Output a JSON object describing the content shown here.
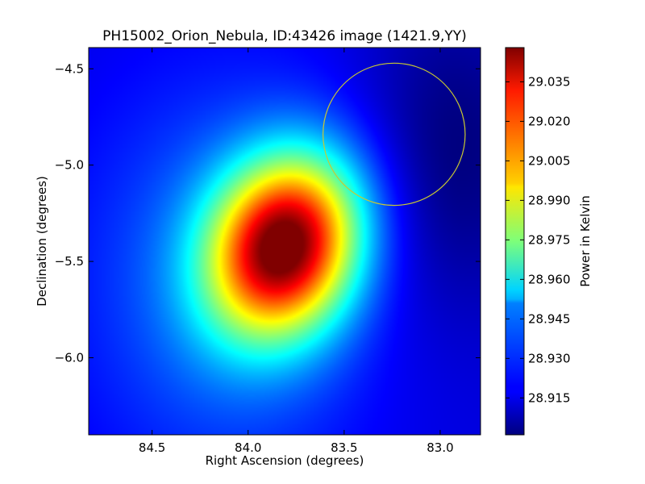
{
  "chart_data": {
    "type": "heatmap",
    "title": "PH15002_Orion_Nebula, ID:43426 image (1421.9,YY)",
    "xlabel": "Right Ascension (degrees)",
    "ylabel": "Declination (degrees)",
    "xlim": [
      84.83,
      82.79
    ],
    "ylim": [
      -6.4,
      -4.39
    ],
    "x_ticks": [
      {
        "value": 84.5,
        "label": "84.5"
      },
      {
        "value": 84.0,
        "label": "84.0"
      },
      {
        "value": 83.5,
        "label": "83.5"
      },
      {
        "value": 83.0,
        "label": "83.0"
      }
    ],
    "y_ticks": [
      {
        "value": -4.5,
        "label": "−4.5"
      },
      {
        "value": -5.0,
        "label": "−5.0"
      },
      {
        "value": -5.5,
        "label": "−5.5"
      },
      {
        "value": -6.0,
        "label": "−6.0"
      }
    ],
    "colormap": "jet",
    "colorbar": {
      "label": "Power in Kelvin",
      "range": [
        28.901,
        29.048
      ],
      "ticks": [
        {
          "value": 28.915,
          "label": "28.915"
        },
        {
          "value": 28.93,
          "label": "28.930"
        },
        {
          "value": 28.945,
          "label": "28.945"
        },
        {
          "value": 28.96,
          "label": "28.960"
        },
        {
          "value": 28.975,
          "label": "28.975"
        },
        {
          "value": 28.99,
          "label": "28.990"
        },
        {
          "value": 29.005,
          "label": "29.005"
        },
        {
          "value": 29.02,
          "label": "29.020"
        },
        {
          "value": 29.035,
          "label": "29.035"
        }
      ]
    },
    "peak": {
      "ra": 83.81,
      "dec": -5.42,
      "value": 29.045
    },
    "background_value": 28.915,
    "beam_circle": {
      "ra": 83.24,
      "dec": -4.84,
      "radius_deg": 0.37,
      "color": "#c8c832"
    }
  }
}
